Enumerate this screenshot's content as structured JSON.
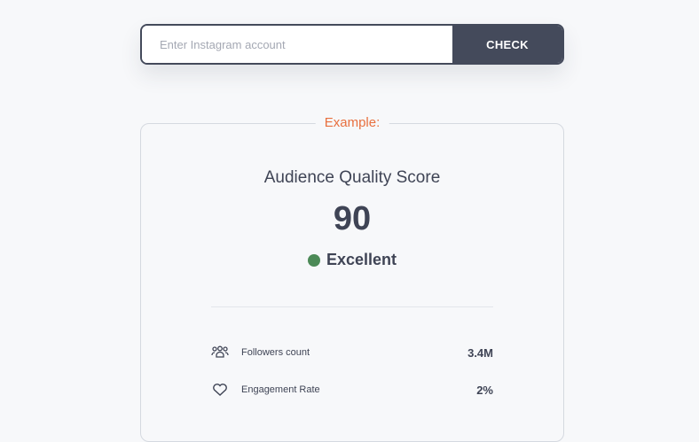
{
  "search": {
    "placeholder": "Enter Instagram account",
    "value": "",
    "button": "CHECK"
  },
  "example": {
    "legend": "Example:",
    "title": "Audience Quality Score",
    "score": "90",
    "grade": "Excellent",
    "grade_color": "#4c8a57",
    "stats": [
      {
        "icon": "users-icon",
        "label": "Followers count",
        "value": "3.4M"
      },
      {
        "icon": "heart-icon",
        "label": "Engagement Rate",
        "value": "2%"
      }
    ]
  },
  "colors": {
    "accent": "#e8703f",
    "dark": "#444a5b"
  }
}
